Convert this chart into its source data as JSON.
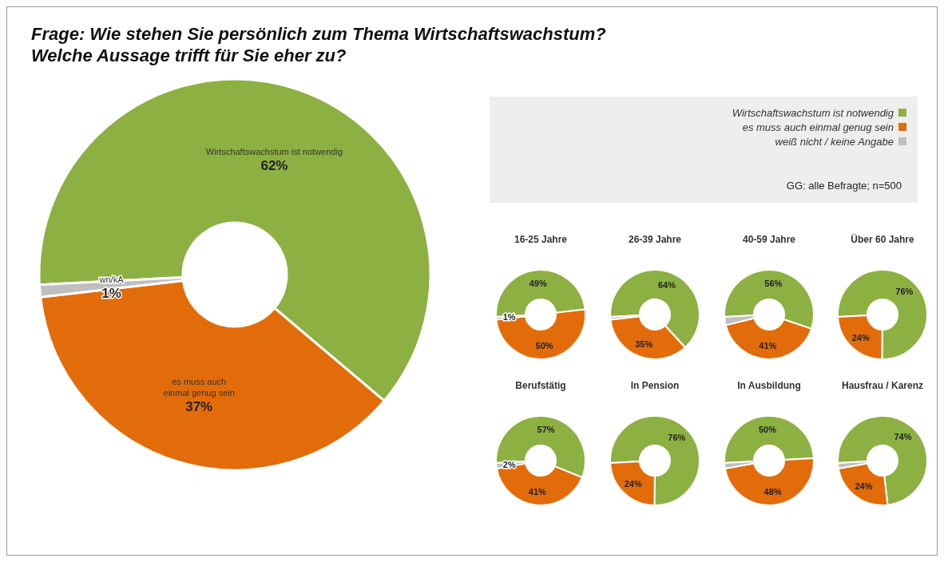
{
  "chart_data": [
    {
      "type": "donut",
      "title": "Frage: Wie stehen Sie persönlich zum Thema Wirtschaftswachstum?\nWelche Aussage trifft für Sie eher zu?",
      "categories": [
        "Wirtschaftswachstum ist notwendig",
        "es muss auch einmal genug sein",
        "weiß nicht / keine Angabe"
      ],
      "values": [
        62,
        37,
        1
      ],
      "colors": [
        "#8db043",
        "#e36c0a",
        "#bfbfbf"
      ],
      "value_labels": [
        "62%",
        "37%",
        "1%"
      ],
      "legend": "top right",
      "annotations": [
        {
          "text": "Wirtschaftswachstum ist notwendig",
          "x": "Wirtschaftswachstum ist notwendig"
        },
        {
          "text": "es muss auch einmal genug sein",
          "x": "es muss auch einmal genug sein"
        },
        {
          "text": "wn/kA",
          "x": "weiß nicht / keine Angabe"
        },
        "GG: alle Befragte; n=500"
      ]
    },
    {
      "type": "donut",
      "title": "16-25 Jahre",
      "categories": [
        null,
        null,
        null
      ],
      "values": [
        49,
        50,
        1
      ],
      "colors": [
        "#8db043",
        "#e36c0a",
        "#bfbfbf"
      ],
      "value_labels": [
        "49%",
        "50%",
        "1%"
      ]
    },
    {
      "type": "donut",
      "title": "26-39 Jahre",
      "categories": [
        null,
        null,
        null
      ],
      "values": [
        64,
        35,
        1
      ],
      "colors": [
        "#8db043",
        "#e36c0a",
        "#bfbfbf"
      ],
      "value_labels": [
        "64%",
        "35%",
        null
      ]
    },
    {
      "type": "donut",
      "title": "40-59 Jahre",
      "categories": [
        null,
        null,
        null
      ],
      "values": [
        56,
        41,
        3
      ],
      "colors": [
        "#8db043",
        "#e36c0a",
        "#bfbfbf"
      ],
      "value_labels": [
        "56%",
        "41%",
        null
      ]
    },
    {
      "type": "donut",
      "title": "Über 60 Jahre",
      "categories": [
        null,
        null
      ],
      "values": [
        76,
        24
      ],
      "colors": [
        "#8db043",
        "#e36c0a"
      ],
      "value_labels": [
        "76%",
        "24%"
      ]
    },
    {
      "type": "donut",
      "title": "Berufstätig",
      "categories": [
        null,
        null,
        null
      ],
      "values": [
        57,
        41,
        2
      ],
      "colors": [
        "#8db043",
        "#e36c0a",
        "#bfbfbf"
      ],
      "value_labels": [
        "57%",
        "41%",
        "2%"
      ]
    },
    {
      "type": "donut",
      "title": "In Pension",
      "categories": [
        null,
        null
      ],
      "values": [
        76,
        24
      ],
      "colors": [
        "#8db043",
        "#e36c0a"
      ],
      "value_labels": [
        "76%",
        "24%"
      ]
    },
    {
      "type": "donut",
      "title": "In Ausbildung",
      "categories": [
        null,
        null,
        null
      ],
      "values": [
        50,
        48,
        2
      ],
      "colors": [
        "#8db043",
        "#e36c0a",
        "#bfbfbf"
      ],
      "value_labels": [
        "50%",
        "48%",
        null
      ]
    },
    {
      "type": "donut",
      "title": "Hausfrau / Karenz",
      "categories": [
        null,
        null,
        null
      ],
      "values": [
        74,
        24,
        2
      ],
      "colors": [
        "#8db043",
        "#e36c0a",
        "#bfbfbf"
      ],
      "value_labels": [
        "74%",
        "24%",
        null
      ]
    }
  ]
}
